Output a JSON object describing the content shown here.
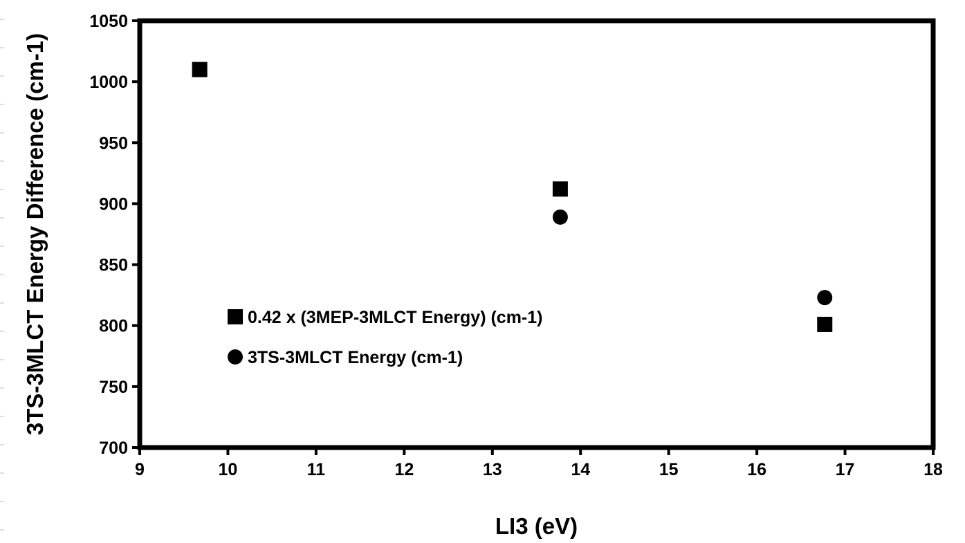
{
  "chart_data": {
    "type": "scatter",
    "title": "",
    "xlabel": "LI3 (eV)",
    "ylabel": "3TS-3MLCT Energy Difference (cm-1)",
    "xlim": [
      9,
      18
    ],
    "ylim": [
      700,
      1050
    ],
    "x_ticks": [
      "9",
      "10",
      "11",
      "12",
      "13",
      "14",
      "15",
      "16",
      "17",
      "18"
    ],
    "y_ticks": [
      "700",
      "750",
      "800",
      "850",
      "900",
      "950",
      "1000",
      "1050"
    ],
    "grid": false,
    "legend_position": "lower-left",
    "series": [
      {
        "name": "0.42 x (3MEP-3MLCT Energy) (cm-1)",
        "marker": "square",
        "color": "#000000",
        "points": [
          {
            "x": 9.68,
            "y": 1010
          },
          {
            "x": 13.77,
            "y": 912
          },
          {
            "x": 16.77,
            "y": 801
          }
        ]
      },
      {
        "name": "3TS-3MLCT Energy (cm-1)",
        "marker": "circle",
        "color": "#000000",
        "points": [
          {
            "x": 13.77,
            "y": 889
          },
          {
            "x": 16.77,
            "y": 823
          }
        ]
      }
    ]
  }
}
